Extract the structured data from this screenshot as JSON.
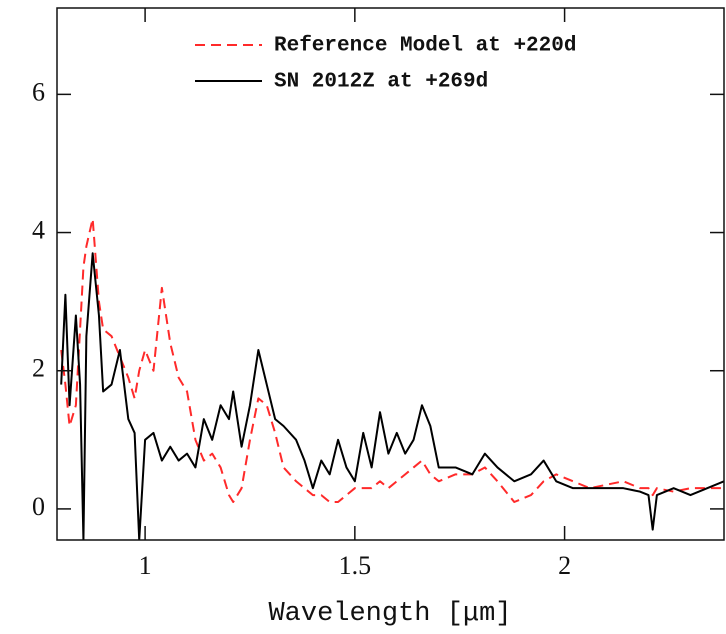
{
  "chart_data": {
    "type": "line",
    "xlabel": "Wavelength [μm]",
    "x": [
      0.8,
      0.81,
      0.82,
      0.835,
      0.845,
      0.853,
      0.86,
      0.875,
      0.89,
      0.9,
      0.92,
      0.94,
      0.96,
      0.975,
      0.986,
      1.0,
      1.02,
      1.04,
      1.06,
      1.08,
      1.1,
      1.12,
      1.14,
      1.16,
      1.18,
      1.2,
      1.21,
      1.23,
      1.25,
      1.27,
      1.29,
      1.31,
      1.33,
      1.36,
      1.38,
      1.4,
      1.42,
      1.44,
      1.46,
      1.48,
      1.5,
      1.52,
      1.54,
      1.56,
      1.58,
      1.6,
      1.62,
      1.64,
      1.66,
      1.68,
      1.7,
      1.74,
      1.78,
      1.81,
      1.84,
      1.88,
      1.92,
      1.95,
      1.98,
      2.02,
      2.06,
      2.1,
      2.14,
      2.18,
      2.2,
      2.21,
      2.22,
      2.26,
      2.3,
      2.34,
      2.38
    ],
    "series": [
      {
        "name": "Reference Model at +220d",
        "color": "#ff2a2a",
        "dashed": true,
        "values": [
          2.3,
          1.8,
          1.2,
          1.5,
          2.6,
          3.5,
          3.8,
          4.2,
          3.0,
          2.6,
          2.5,
          2.2,
          1.9,
          1.6,
          2.0,
          2.3,
          2.0,
          3.2,
          2.4,
          1.9,
          1.7,
          1.0,
          0.7,
          0.8,
          0.6,
          0.2,
          0.1,
          0.3,
          1.0,
          1.6,
          1.5,
          1.1,
          0.6,
          0.4,
          0.3,
          0.2,
          0.2,
          0.1,
          0.1,
          0.2,
          0.3,
          0.3,
          0.3,
          0.4,
          0.3,
          0.4,
          0.5,
          0.6,
          0.7,
          0.5,
          0.4,
          0.5,
          0.5,
          0.6,
          0.4,
          0.1,
          0.2,
          0.4,
          0.5,
          0.4,
          0.3,
          0.35,
          0.4,
          0.3,
          0.3,
          0.2,
          0.3,
          0.25,
          0.3,
          0.3,
          0.3
        ]
      },
      {
        "name": "SN 2012Z at +269d",
        "color": "#000000",
        "dashed": false,
        "values": [
          1.8,
          3.1,
          1.5,
          2.8,
          1.8,
          -0.45,
          2.5,
          3.7,
          2.8,
          1.7,
          1.8,
          2.3,
          1.3,
          1.1,
          -0.45,
          1.0,
          1.1,
          0.7,
          0.9,
          0.7,
          0.8,
          0.6,
          1.3,
          1.0,
          1.5,
          1.3,
          1.7,
          0.9,
          1.5,
          2.3,
          1.8,
          1.3,
          1.2,
          1.0,
          0.7,
          0.3,
          0.7,
          0.5,
          1.0,
          0.6,
          0.4,
          1.1,
          0.6,
          1.4,
          0.8,
          1.1,
          0.8,
          1.0,
          1.5,
          1.2,
          0.6,
          0.6,
          0.5,
          0.8,
          0.6,
          0.4,
          0.5,
          0.7,
          0.4,
          0.3,
          0.3,
          0.3,
          0.3,
          0.25,
          0.2,
          -0.3,
          0.2,
          0.3,
          0.2,
          0.3,
          0.4
        ]
      }
    ],
    "xlim": [
      0.79,
      2.38
    ],
    "ylim": [
      -0.45,
      7.25
    ],
    "xticks": [
      {
        "value": 1,
        "label": "1"
      },
      1.5,
      2
    ],
    "yticks": [
      0,
      2,
      4,
      6
    ],
    "legend": "upper right"
  }
}
